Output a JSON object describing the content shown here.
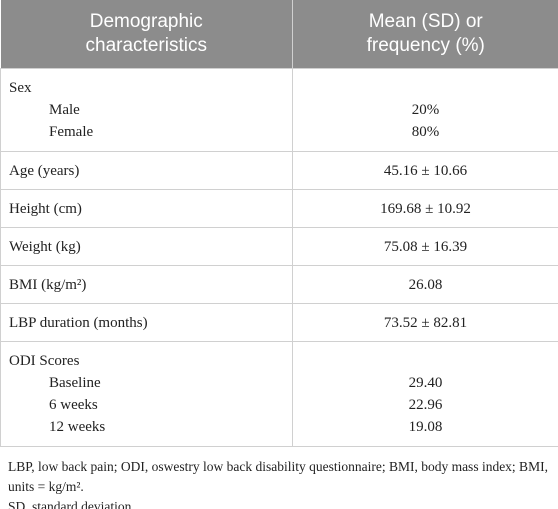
{
  "table": {
    "header": [
      "Demographic characteristics",
      "Mean (SD) or frequency (%)"
    ],
    "rows": [
      {
        "label": "Sex",
        "items": [
          [
            "Male",
            "20%"
          ],
          [
            "Female",
            "80%"
          ]
        ]
      },
      {
        "label": "Age (years)",
        "value": "45.16 ± 10.66"
      },
      {
        "label": "Height (cm)",
        "value": "169.68 ± 10.92"
      },
      {
        "label": "Weight (kg)",
        "value": "75.08 ± 16.39"
      },
      {
        "label": "BMI (kg/m²)",
        "value": "26.08"
      },
      {
        "label": "LBP duration (months)",
        "value": "73.52 ± 82.81"
      },
      {
        "label": "ODI Scores",
        "items": [
          [
            "Baseline",
            "29.40"
          ],
          [
            "6 weeks",
            "22.96"
          ],
          [
            "12 weeks",
            "19.08"
          ]
        ]
      }
    ]
  },
  "footnotes": [
    "LBP, low back pain; ODI, oswestry low back disability questionnaire; BMI, body mass index; BMI, units = kg/m².",
    "SD, standard deviation."
  ]
}
